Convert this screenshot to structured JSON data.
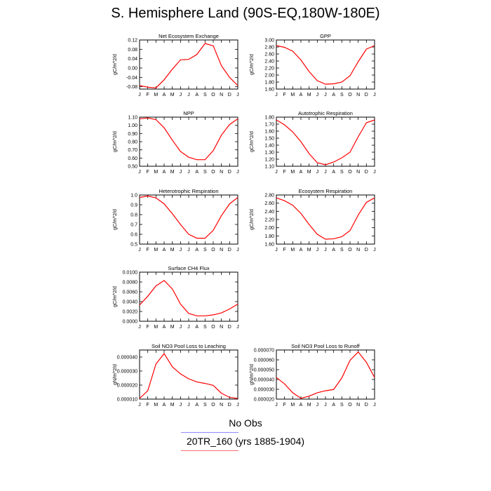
{
  "title": "S. Hemisphere Land (90S-EQ,180W-180E)",
  "legend": {
    "obs_label": "No Obs",
    "case_label": "20TR_160 (yrs 1885-1904)",
    "obs_color": "#8080ff",
    "case_color": "#ff0000"
  },
  "colors": {
    "line": "#ff0000",
    "axis": "#000000"
  },
  "chart_data": [
    {
      "type": "line",
      "title": "Net Ecosystem Exchange",
      "ylabel": "gC/m^2/d",
      "categories": [
        "J",
        "F",
        "M",
        "A",
        "M",
        "J",
        "J",
        "A",
        "S",
        "O",
        "N",
        "D",
        "J"
      ],
      "ylim": [
        -0.09,
        0.12
      ],
      "yticks": [
        -0.08,
        -0.04,
        0.0,
        0.04,
        0.08,
        0.12
      ],
      "ytick_labels": [
        "-0.08",
        "-0.04",
        "0.00",
        "0.04",
        "0.08",
        "0.12"
      ],
      "series": [
        {
          "values": [
            -0.075,
            -0.082,
            -0.085,
            -0.05,
            -0.005,
            0.035,
            0.037,
            0.058,
            0.105,
            0.095,
            0.01,
            -0.04,
            -0.075
          ]
        }
      ]
    },
    {
      "type": "line",
      "title": "GPP",
      "ylabel": "gC/m^2/d",
      "categories": [
        "J",
        "F",
        "M",
        "A",
        "M",
        "J",
        "J",
        "A",
        "S",
        "O",
        "N",
        "D",
        "J"
      ],
      "ylim": [
        1.6,
        3.0
      ],
      "yticks": [
        1.6,
        1.8,
        2.0,
        2.2,
        2.4,
        2.6,
        2.8,
        3.0
      ],
      "ytick_labels": [
        "1.60",
        "1.80",
        "2.00",
        "2.20",
        "2.40",
        "2.60",
        "2.80",
        "3.00"
      ],
      "series": [
        {
          "values": [
            2.84,
            2.79,
            2.68,
            2.43,
            2.1,
            1.84,
            1.74,
            1.75,
            1.8,
            1.98,
            2.38,
            2.74,
            2.84
          ]
        }
      ]
    },
    {
      "type": "line",
      "title": "NPP",
      "ylabel": "gC/m^2/d",
      "categories": [
        "J",
        "F",
        "M",
        "A",
        "M",
        "J",
        "J",
        "A",
        "S",
        "O",
        "N",
        "D",
        "J"
      ],
      "ylim": [
        0.5,
        1.1
      ],
      "yticks": [
        0.5,
        0.6,
        0.7,
        0.8,
        0.9,
        1.0,
        1.1
      ],
      "ytick_labels": [
        "0.50",
        "0.60",
        "0.70",
        "0.80",
        "0.90",
        "1.00",
        "1.10"
      ],
      "series": [
        {
          "values": [
            1.08,
            1.09,
            1.07,
            0.97,
            0.82,
            0.68,
            0.61,
            0.58,
            0.58,
            0.69,
            0.88,
            1.01,
            1.08
          ]
        }
      ]
    },
    {
      "type": "line",
      "title": "Autotrophic Respiration",
      "ylabel": "gC/m^2/d",
      "categories": [
        "J",
        "F",
        "M",
        "A",
        "M",
        "J",
        "J",
        "A",
        "S",
        "O",
        "N",
        "D",
        "J"
      ],
      "ylim": [
        1.1,
        1.8
      ],
      "yticks": [
        1.1,
        1.2,
        1.3,
        1.4,
        1.5,
        1.6,
        1.7,
        1.8
      ],
      "ytick_labels": [
        "1.10",
        "1.20",
        "1.30",
        "1.40",
        "1.50",
        "1.60",
        "1.70",
        "1.80"
      ],
      "series": [
        {
          "values": [
            1.76,
            1.69,
            1.59,
            1.45,
            1.28,
            1.15,
            1.12,
            1.16,
            1.22,
            1.3,
            1.52,
            1.72,
            1.76
          ]
        }
      ]
    },
    {
      "type": "line",
      "title": "Heterotrophic Respiration",
      "ylabel": "gC/m^2/d",
      "categories": [
        "J",
        "F",
        "M",
        "A",
        "M",
        "J",
        "J",
        "A",
        "S",
        "O",
        "N",
        "D",
        "J"
      ],
      "ylim": [
        0.5,
        1.0
      ],
      "yticks": [
        0.5,
        0.6,
        0.7,
        0.8,
        0.9,
        1.0
      ],
      "ytick_labels": [
        "0.5",
        "0.6",
        "0.7",
        "0.8",
        "0.9",
        "1.0"
      ],
      "series": [
        {
          "values": [
            0.975,
            0.99,
            0.97,
            0.91,
            0.81,
            0.7,
            0.6,
            0.56,
            0.56,
            0.64,
            0.79,
            0.91,
            0.975
          ]
        }
      ]
    },
    {
      "type": "line",
      "title": "Ecosystem Respiration",
      "ylabel": "gC/m^2/d",
      "categories": [
        "J",
        "F",
        "M",
        "A",
        "M",
        "J",
        "J",
        "A",
        "S",
        "O",
        "N",
        "D",
        "J"
      ],
      "ylim": [
        1.6,
        2.8
      ],
      "yticks": [
        1.6,
        1.8,
        2.0,
        2.2,
        2.4,
        2.6,
        2.8
      ],
      "ytick_labels": [
        "1.60",
        "1.80",
        "2.00",
        "2.20",
        "2.40",
        "2.60",
        "2.80"
      ],
      "series": [
        {
          "values": [
            2.73,
            2.66,
            2.55,
            2.35,
            2.08,
            1.84,
            1.72,
            1.73,
            1.78,
            1.93,
            2.31,
            2.62,
            2.73
          ]
        }
      ]
    },
    {
      "type": "line",
      "title": "Surface CH4 Flux",
      "ylabel": "gC/m^2/d",
      "categories": [
        "J",
        "F",
        "M",
        "A",
        "M",
        "J",
        "J",
        "A",
        "S",
        "O",
        "N",
        "D",
        "J"
      ],
      "ylim": [
        0.0,
        0.01
      ],
      "yticks": [
        0.0,
        0.002,
        0.004,
        0.006,
        0.008,
        0.01
      ],
      "ytick_labels": [
        "0.0000",
        "0.0020",
        "0.0040",
        "0.0060",
        "0.0080",
        "0.0100"
      ],
      "series": [
        {
          "values": [
            0.0033,
            0.0051,
            0.0072,
            0.0083,
            0.0066,
            0.0035,
            0.0016,
            0.0011,
            0.0011,
            0.0013,
            0.0017,
            0.0025,
            0.0035
          ]
        }
      ]
    },
    {
      "type": "line",
      "title": "Soil NO3 Pool Loss to Leaching",
      "ylabel": "gN/m^2/d",
      "categories": [
        "J",
        "F",
        "M",
        "A",
        "M",
        "J",
        "J",
        "A",
        "S",
        "O",
        "N",
        "D",
        "J"
      ],
      "ylim": [
        1e-05,
        4.5e-05
      ],
      "yticks": [
        1e-05,
        2e-05,
        3e-05,
        4e-05
      ],
      "ytick_labels": [
        "0.000010",
        "0.000020",
        "0.000030",
        "0.000040"
      ],
      "series": [
        {
          "values": [
            1.05e-05,
            1.6e-05,
            3.5e-05,
            4.25e-05,
            3.3e-05,
            2.8e-05,
            2.45e-05,
            2.22e-05,
            2.12e-05,
            1.98e-05,
            1.42e-05,
            1.12e-05,
            1.05e-05
          ]
        }
      ]
    },
    {
      "type": "line",
      "title": "Soil NO3 Pool Loss to Runoff",
      "ylabel": "gN/m^2/d",
      "categories": [
        "J",
        "F",
        "M",
        "A",
        "M",
        "J",
        "J",
        "A",
        "S",
        "O",
        "N",
        "D",
        "J"
      ],
      "ylim": [
        2e-05,
        7e-05
      ],
      "yticks": [
        2e-05,
        3e-05,
        4e-05,
        5e-05,
        6e-05,
        7e-05
      ],
      "ytick_labels": [
        "0.000020",
        "0.000030",
        "0.000040",
        "0.000050",
        "0.000060",
        "0.000070"
      ],
      "series": [
        {
          "values": [
            4.2e-05,
            3.55e-05,
            2.65e-05,
            2.08e-05,
            2.3e-05,
            2.65e-05,
            2.85e-05,
            2.98e-05,
            4.15e-05,
            5.95e-05,
            6.8e-05,
            5.75e-05,
            4.2e-05
          ]
        }
      ]
    }
  ]
}
